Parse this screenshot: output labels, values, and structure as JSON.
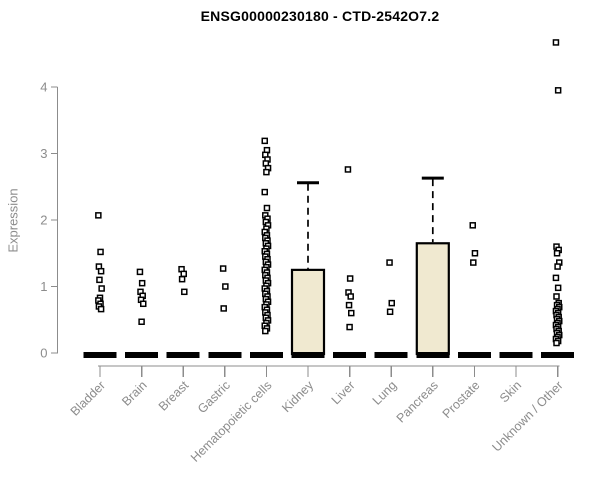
{
  "page": {
    "background": "#ffffff"
  },
  "chart_data": {
    "type": "boxplot",
    "title": "ENSG00000230180 - CTD-2542O7.2",
    "ylabel": "Expression",
    "xlabel": "",
    "yticks": [
      0,
      1,
      2,
      3,
      4
    ],
    "ylim": [
      0,
      4.8
    ],
    "grid": false,
    "legend_position": "none",
    "point_marker": "open-square",
    "colors": {
      "box_fill": "#f0e9d0",
      "box_stroke": "#000000",
      "zero_bar": "#000000",
      "point_stroke": "#000000",
      "point_fill": "#ffffff",
      "axis": "#8c8c8c",
      "tick_label": "#8c8c8c",
      "title": "#000000"
    },
    "groups": [
      {
        "label": "Bladder",
        "median": 0,
        "points": [
          2.07,
          1.52,
          1.3,
          1.23,
          1.1,
          0.97,
          0.83,
          0.79,
          0.74,
          0.7,
          0.66
        ]
      },
      {
        "label": "Brain",
        "median": 0,
        "points": [
          1.22,
          1.05,
          0.92,
          0.86,
          0.8,
          0.74,
          0.47
        ]
      },
      {
        "label": "Breast",
        "median": 0,
        "points": [
          1.26,
          1.19,
          1.11,
          0.92
        ]
      },
      {
        "label": "Gastric",
        "median": 0,
        "points": [
          1.27,
          1.0,
          0.67
        ]
      },
      {
        "label": "Hematopoietic cells",
        "median": 0,
        "points": [
          3.19,
          3.05,
          2.98,
          2.91,
          2.85,
          2.78,
          2.72,
          2.42,
          2.18,
          2.07,
          2.02,
          1.97,
          1.92,
          1.87,
          1.82,
          1.77,
          1.73,
          1.69,
          1.65,
          1.61,
          1.57,
          1.53,
          1.49,
          1.45,
          1.41,
          1.37,
          1.33,
          1.29,
          1.25,
          1.21,
          1.17,
          1.13,
          1.09,
          1.05,
          1.01,
          0.97,
          0.93,
          0.89,
          0.85,
          0.81,
          0.77,
          0.73,
          0.69,
          0.65,
          0.61,
          0.57,
          0.53,
          0.49,
          0.45,
          0.41,
          0.37,
          0.33
        ]
      },
      {
        "label": "Kidney",
        "median": 0,
        "box": {
          "q1": 0,
          "q3": 1.25,
          "whisker_low": 0,
          "whisker_high": 2.56
        },
        "points": []
      },
      {
        "label": "Liver",
        "median": 0,
        "points": [
          2.76,
          1.12,
          0.91,
          0.85,
          0.72,
          0.6,
          0.39
        ]
      },
      {
        "label": "Lung",
        "median": 0,
        "points": [
          1.36,
          0.75,
          0.62
        ]
      },
      {
        "label": "Pancreas",
        "median": 0,
        "box": {
          "q1": 0,
          "q3": 1.65,
          "whisker_low": 0,
          "whisker_high": 2.63
        },
        "points": []
      },
      {
        "label": "Prostate",
        "median": 0,
        "points": [
          1.92,
          1.5,
          1.36
        ]
      },
      {
        "label": "Skin",
        "median": 0,
        "points": []
      },
      {
        "label": "Unknown / Other",
        "median": 0,
        "points": [
          4.67,
          3.95,
          1.6,
          1.55,
          1.5,
          1.36,
          1.3,
          1.13,
          0.98,
          0.85,
          0.75,
          0.72,
          0.69,
          0.66,
          0.63,
          0.6,
          0.57,
          0.54,
          0.51,
          0.48,
          0.45,
          0.42,
          0.39,
          0.36,
          0.33,
          0.3,
          0.27,
          0.24,
          0.21,
          0.18,
          0.15
        ]
      }
    ]
  }
}
